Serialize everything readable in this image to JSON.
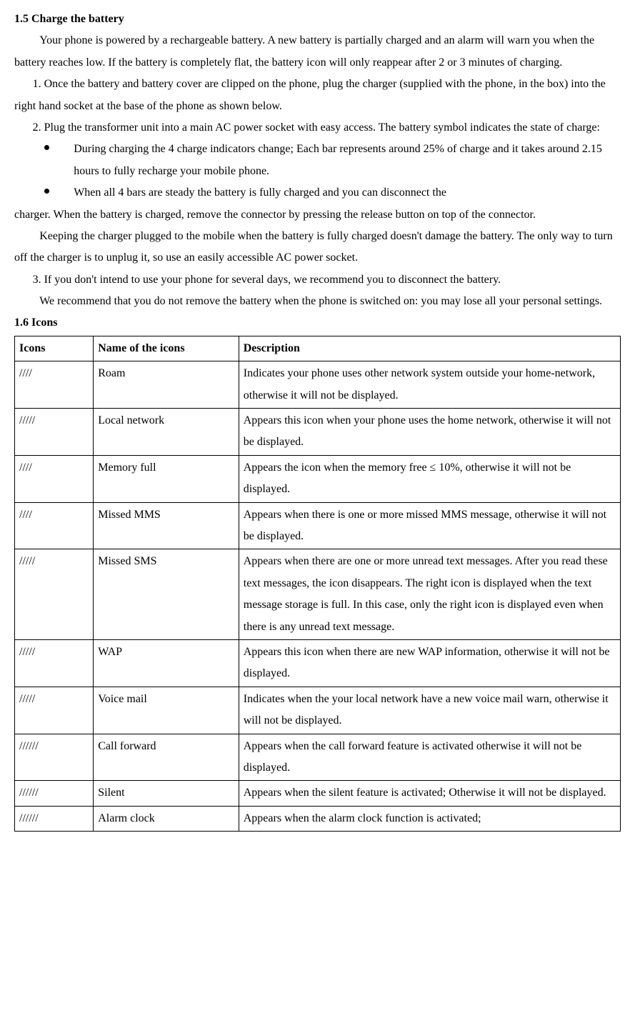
{
  "section15": {
    "heading": "1.5 Charge the battery",
    "para1": "Your phone is powered by a rechargeable battery. A new battery is partially charged and an alarm will warn you when the battery reaches low. If the battery is completely flat, the battery icon will only reappear after 2 or 3 minutes of charging.",
    "step1": "1. Once the battery and battery cover are clipped on the phone, plug the charger (supplied with the phone, in the box) into the right hand socket at the base of the phone as shown below.",
    "step2": "2. Plug the transformer unit into a main AC power socket with easy access. The battery symbol indicates the state of charge:",
    "bullet1": "During charging the 4 charge indicators change; Each bar represents around 25% of charge and it takes around 2.15 hours to fully recharge your mobile phone.",
    "bullet2": "When all 4 bars are steady the battery is fully charged and you can disconnect the",
    "after_bullets": "charger. When the battery is charged, remove the connector by pressing the release button on top of the connector.",
    "para2": "Keeping the charger plugged to the mobile when the battery is fully charged doesn't damage the battery. The only way to turn off the charger is to unplug it, so use an easily accessible AC power socket.",
    "step3": "3. If you don't intend to use your phone for several days, we recommend you to disconnect the battery.",
    "para3": "We recommend that you do not remove the battery when the phone is switched on: you may lose all your personal settings."
  },
  "section16": {
    "heading": "1.6 Icons",
    "headers": {
      "icons": "Icons",
      "name": "Name of the icons",
      "description": "Description"
    },
    "rows": [
      {
        "icon": "////",
        "name": "Roam",
        "desc": "Indicates your phone uses other network system outside your home-network, otherwise it will not be displayed."
      },
      {
        "icon": "/////",
        "name": "Local network",
        "desc": "Appears this icon when your phone uses the home network, otherwise it will not be displayed."
      },
      {
        "icon": "////",
        "name": "Memory full",
        "desc": "Appears the icon when the memory free ≤ 10%, otherwise it will not be displayed."
      },
      {
        "icon": "////",
        "name": "Missed MMS",
        "desc": "Appears when there is one or more missed MMS message, otherwise it will not be displayed."
      },
      {
        "icon": "/////",
        "name": "Missed SMS",
        "desc": "Appears when there are one or more unread text messages. After you read these text messages, the icon disappears. The right icon is displayed when the text message storage is full. In this case, only the right icon is displayed even when there is any unread text message."
      },
      {
        "icon": "/////",
        "name": "WAP",
        "desc": "Appears this icon when there are new WAP information, otherwise it will not be displayed."
      },
      {
        "icon": "/////",
        "name": "Voice mail",
        "desc": "Indicates when the your local network have a new voice mail warn, otherwise it will not be displayed."
      },
      {
        "icon": "//////",
        "name": "Call forward",
        "desc": "Appears when the call forward feature is activated otherwise it will not be displayed."
      },
      {
        "icon": "//////",
        "name": "Silent",
        "desc": "Appears when the silent feature is activated; Otherwise it will not be displayed."
      },
      {
        "icon": "//////",
        "name": "Alarm clock",
        "desc": "Appears when the alarm clock function is activated;"
      }
    ]
  }
}
